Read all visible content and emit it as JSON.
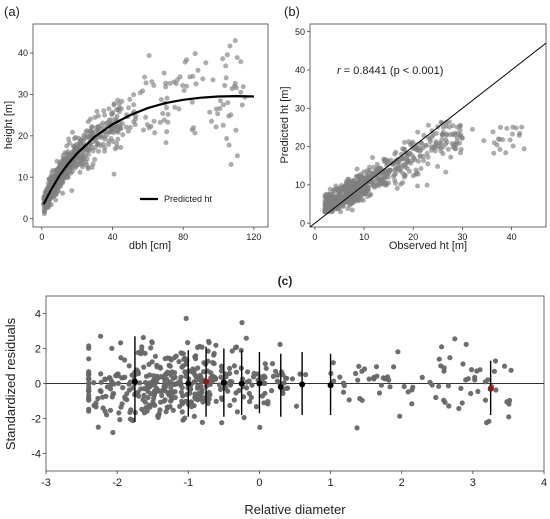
{
  "chart_data": [
    {
      "type": "scatter",
      "panel_label": "(a)",
      "xlabel": "dbh [cm]",
      "ylabel": "height [m]",
      "xlim": [
        -5,
        128
      ],
      "ylim": [
        -2,
        47
      ],
      "xticks": [
        "0",
        "40",
        "80",
        "120"
      ],
      "yticks": [
        "0",
        "10",
        "20",
        "30",
        "40"
      ],
      "legend": {
        "entries": [
          "Predicted ht"
        ],
        "placement": "bottom-right"
      },
      "point_color": "#808080",
      "line_color": "#000000",
      "series": [
        {
          "name": "Predicted ht",
          "type": "line",
          "x": [
            1,
            5,
            10,
            15,
            20,
            30,
            40,
            50,
            60,
            70,
            80,
            90,
            100,
            110,
            120
          ],
          "y": [
            3.5,
            6.8,
            10.4,
            13.3,
            15.8,
            19.8,
            22.8,
            25.0,
            26.7,
            27.9,
            28.7,
            29.2,
            29.5,
            29.6,
            29.5
          ]
        }
      ],
      "point_cloud": {
        "description_values": "observed trees",
        "x_range": [
          0,
          120
        ],
        "y_range": [
          0,
          43
        ],
        "n_points": 700
      }
    },
    {
      "type": "scatter",
      "panel_label": "(b)",
      "xlabel": "Observed ht [m]",
      "ylabel": "Predicted ht [m]",
      "xlim": [
        -1,
        47
      ],
      "ylim": [
        -1,
        52
      ],
      "xticks": [
        "0",
        "10",
        "20",
        "30",
        "40"
      ],
      "yticks": [
        "0",
        "10",
        "20",
        "30",
        "40",
        "50"
      ],
      "annotation": {
        "r_symbol": "r",
        "text": " = 0.8441 (p < 0.001)"
      },
      "reference_line": {
        "x": [
          -1,
          47
        ],
        "y": [
          -1,
          47
        ]
      },
      "point_color": "#808080",
      "point_cloud": {
        "x_range": [
          2,
          43
        ],
        "y_range": [
          3,
          28
        ],
        "n_points": 700
      }
    },
    {
      "type": "scatter",
      "panel_label": "(c)",
      "xlabel": "Relative diameter",
      "ylabel": "Standardized residuals",
      "xlim": [
        -3,
        4
      ],
      "ylim": [
        -5,
        5
      ],
      "xticks": [
        "-3",
        "-2",
        "-1",
        "0",
        "1",
        "2",
        "3",
        "4"
      ],
      "yticks": [
        "-4",
        "-2",
        "0",
        "2",
        "4"
      ],
      "hline": 0,
      "point_color": "#666666",
      "error_bars": [
        {
          "x": -1.75,
          "mean": 0.1,
          "lower": -2.2,
          "upper": 2.7,
          "marker": "black"
        },
        {
          "x": -1.0,
          "mean": 0.0,
          "lower": -1.9,
          "upper": 1.9,
          "marker": "black"
        },
        {
          "x": -0.75,
          "mean": 0.1,
          "lower": -1.9,
          "upper": 2.1,
          "marker": "red"
        },
        {
          "x": -0.5,
          "mean": 0.05,
          "lower": -1.9,
          "upper": 2.0,
          "marker": "black"
        },
        {
          "x": -0.25,
          "mean": 0.0,
          "lower": -1.8,
          "upper": 1.9,
          "marker": "black"
        },
        {
          "x": 0.0,
          "mean": 0.0,
          "lower": -1.7,
          "upper": 1.8,
          "marker": "black"
        },
        {
          "x": 0.3,
          "mean": -0.2,
          "lower": -1.9,
          "upper": 1.7,
          "marker": "black"
        },
        {
          "x": 0.6,
          "mean": -0.05,
          "lower": -1.8,
          "upper": 1.8,
          "marker": "black"
        },
        {
          "x": 1.0,
          "mean": -0.1,
          "lower": -1.8,
          "upper": 1.7,
          "marker": "black"
        },
        {
          "x": 3.25,
          "mean": -0.3,
          "lower": -1.8,
          "upper": 1.3,
          "marker": "red"
        }
      ],
      "point_cloud": {
        "x_range": [
          -2.4,
          3.6
        ],
        "y_range": [
          -2.8,
          3.8
        ],
        "n_points": 520
      }
    }
  ]
}
